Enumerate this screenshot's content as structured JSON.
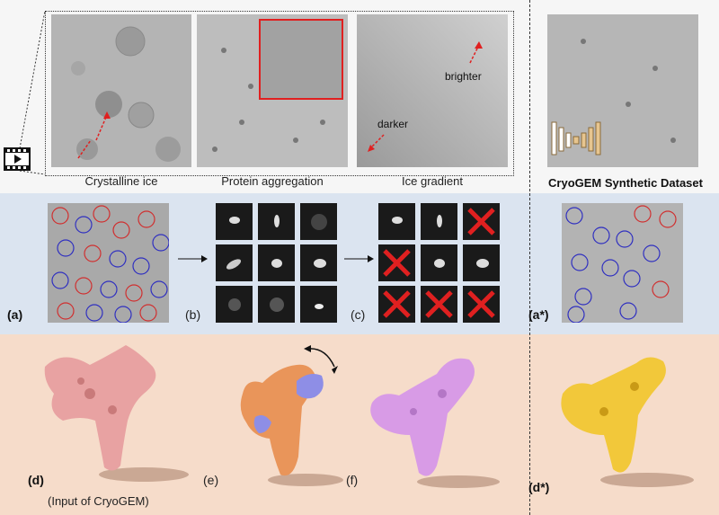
{
  "captions": {
    "crystalline": "Crystalline ice",
    "aggregation": "Protein aggregation",
    "gradient": "Ice gradient",
    "synthetic": "CryoGEM Synthetic Dataset",
    "brighter": "brighter",
    "darker": "darker"
  },
  "labels": {
    "a": "(a)",
    "b": "(b)",
    "c": "(c)",
    "a_star": "(a*)",
    "d": "(d)",
    "d_input": "(Input of CryoGEM)",
    "e": "(e)",
    "f": "(f)",
    "d_star": "(d*)"
  },
  "colors": {
    "band_top": "#f6f6f6",
    "band_mid": "#dbe4f0",
    "band_bot": "#f6dcca",
    "pink_volume": "#e8a2a2",
    "orange_volume": "#e9955a",
    "blue_volume": "#8e8ee6",
    "violet_volume": "#d89be6",
    "yellow_volume": "#f2c83a",
    "annotation_red": "#e02020"
  },
  "icons": [
    "video-icon",
    "rotate-arrow-icon",
    "reject-cross-icon",
    "network-icon"
  ]
}
